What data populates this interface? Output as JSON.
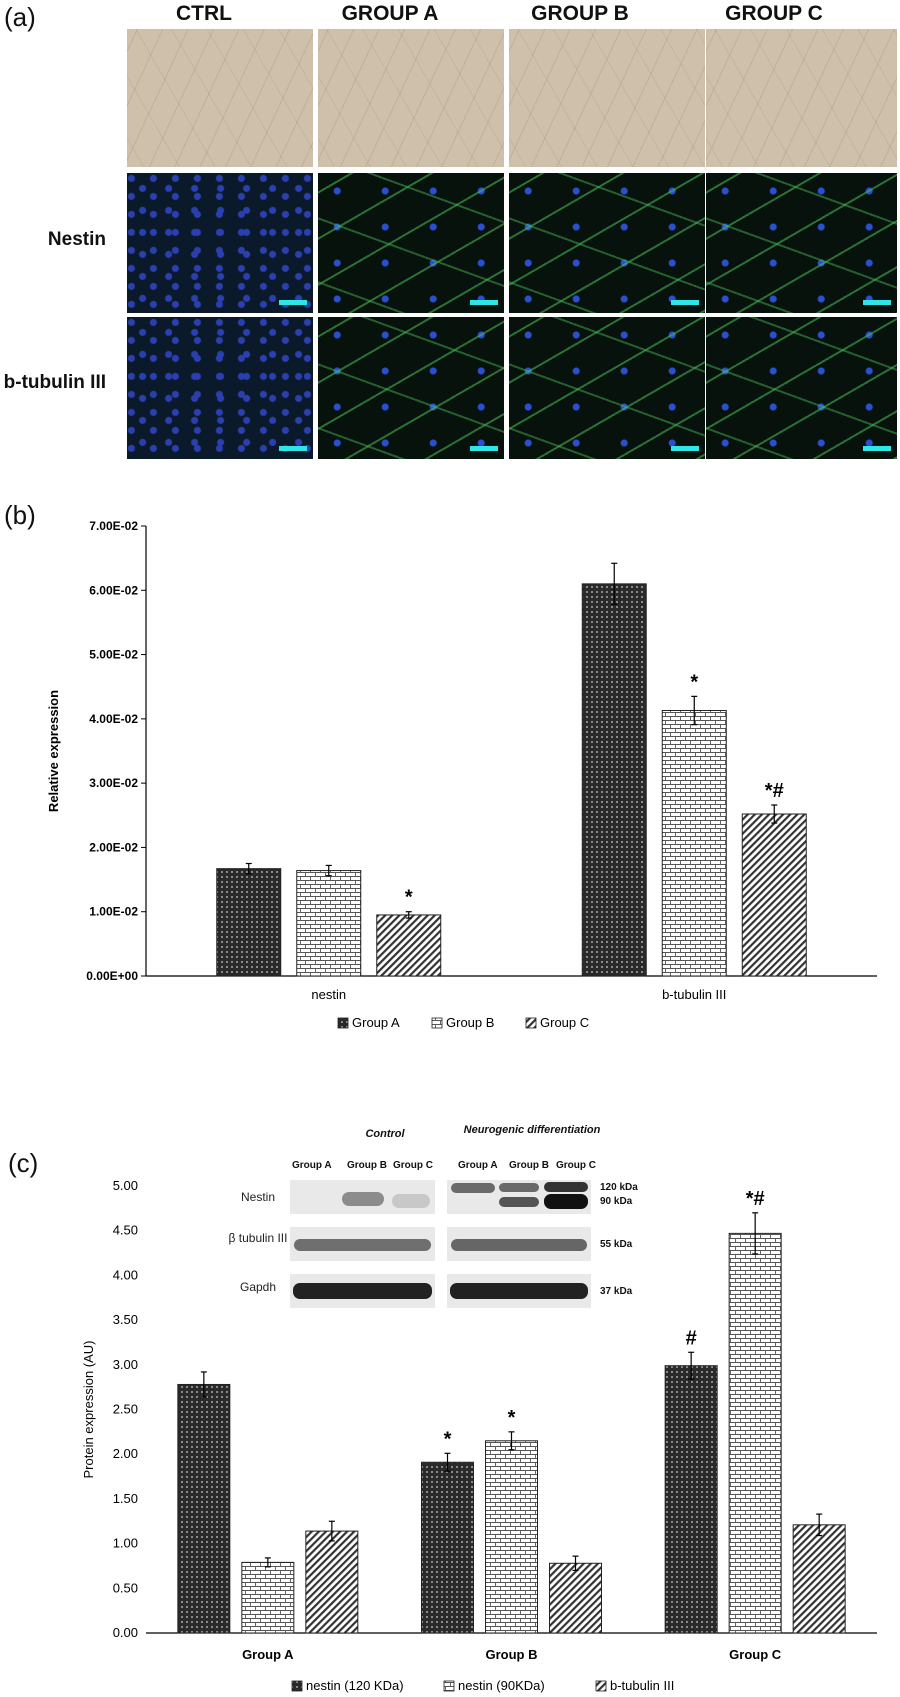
{
  "panel_a": {
    "label": "(a)",
    "columns": [
      "CTRL",
      "GROUP A",
      "GROUP B",
      "GROUP C"
    ],
    "rows": [
      "Nestin",
      "b-tubulin III"
    ]
  },
  "panel_b_label": "(b)",
  "panel_c_label": "(c)",
  "western_blot": {
    "group_headers": [
      "Control",
      "Neurogenic differentiation"
    ],
    "lane_labels": [
      "Group A",
      "Group B",
      "Group C",
      "Group A",
      "Group B",
      "Group C"
    ],
    "proteins": [
      "Nestin",
      "β tubulin III",
      "Gapdh"
    ],
    "mw_labels": [
      "120 kDa",
      "90 kDa",
      "55 kDa",
      "37 kDa"
    ]
  },
  "chart_data": [
    {
      "type": "bar",
      "panel": "b",
      "categories": [
        "nestin",
        "b-tubulin III"
      ],
      "series": [
        {
          "name": "Group  A",
          "values": [
            0.0167,
            0.061
          ],
          "errors": [
            0.0008,
            0.0032
          ],
          "pattern": "grid"
        },
        {
          "name": "Group  B",
          "values": [
            0.0164,
            0.0413
          ],
          "errors": [
            0.0008,
            0.0022
          ],
          "pattern": "brick"
        },
        {
          "name": "Group C",
          "values": [
            0.0095,
            0.0252
          ],
          "errors": [
            0.0005,
            0.0014
          ],
          "pattern": "hatch"
        }
      ],
      "annotations": [
        [
          "",
          ""
        ],
        [
          "",
          "*"
        ],
        [
          "*",
          "*#"
        ]
      ],
      "ylabel": "Relative expression",
      "xlabel": "",
      "ylim": [
        0,
        0.07
      ],
      "yticks": [
        "0.00E+00",
        "1.00E-02",
        "2.00E-02",
        "3.00E-02",
        "4.00E-02",
        "5.00E-02",
        "6.00E-02",
        "7.00E-02"
      ],
      "legend": "bottom"
    },
    {
      "type": "bar",
      "panel": "c",
      "categories": [
        "Group A",
        "Group  B",
        "Group C"
      ],
      "series": [
        {
          "name": "nestin (120 KDa)",
          "values": [
            2.78,
            1.91,
            2.99
          ],
          "errors": [
            0.14,
            0.1,
            0.15
          ],
          "pattern": "grid"
        },
        {
          "name": "nestin (90KDa)",
          "values": [
            0.79,
            2.15,
            4.47
          ],
          "errors": [
            0.05,
            0.1,
            0.23
          ],
          "pattern": "brick"
        },
        {
          "name": "b-tubulin III",
          "values": [
            1.14,
            0.78,
            1.21
          ],
          "errors": [
            0.11,
            0.08,
            0.12
          ],
          "pattern": "hatch"
        }
      ],
      "annotations": [
        [
          "",
          "*",
          "#"
        ],
        [
          "",
          "*",
          "*#"
        ],
        [
          "",
          "",
          ""
        ]
      ],
      "ylabel": "Protein expression  (AU)",
      "xlabel": "",
      "ylim": [
        0,
        5
      ],
      "yticks": [
        "0.00",
        "0.50",
        "1.00",
        "1.50",
        "2.00",
        "2.50",
        "3.00",
        "3.50",
        "4.00",
        "4.50",
        "5.00"
      ],
      "legend": "bottom"
    }
  ]
}
